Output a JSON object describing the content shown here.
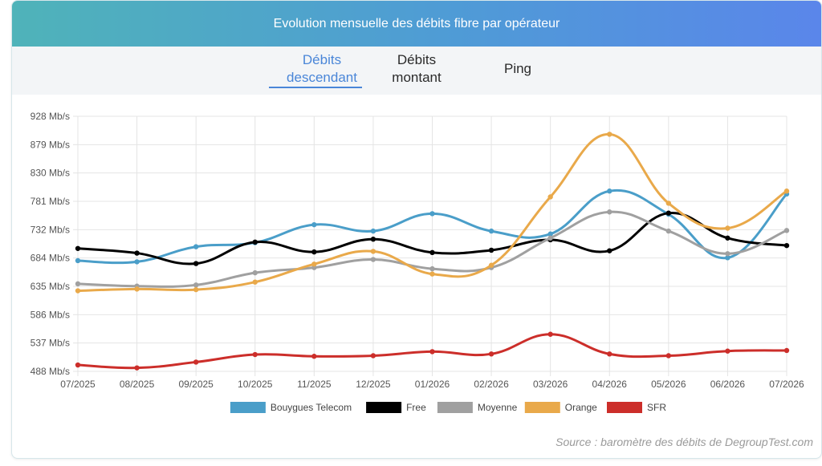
{
  "header": {
    "title": "Evolution mensuelle des débits fibre par opérateur"
  },
  "tabs": [
    {
      "line1": "Débits",
      "line2": "descendant",
      "active": true
    },
    {
      "line1": "Débits",
      "line2": "montant",
      "active": false
    },
    {
      "line1": "Ping",
      "line2": "",
      "active": false
    }
  ],
  "source": "Source : baromètre des débits de DegroupTest.com",
  "colors": {
    "Bouygues Telecom": "#4a9ec9",
    "Free": "#000000",
    "Moyenne": "#a0a0a0",
    "Orange": "#e9a94a",
    "SFR": "#cc2e2a"
  },
  "chart_data": {
    "type": "line",
    "title": "",
    "xlabel": "",
    "ylabel": "",
    "categories": [
      "07/2025",
      "08/2025",
      "09/2025",
      "10/2025",
      "11/2025",
      "12/2025",
      "01/2026",
      "02/2026",
      "03/2026",
      "04/2026",
      "05/2026",
      "06/2026",
      "07/2026"
    ],
    "y_ticks": [
      "928 Mb/s",
      "879 Mb/s",
      "830 Mb/s",
      "781 Mb/s",
      "732 Mb/s",
      "684 Mb/s",
      "635 Mb/s",
      "586 Mb/s",
      "537 Mb/s",
      "488 Mb/s"
    ],
    "ylim": [
      488,
      928
    ],
    "grid": true,
    "legend_position": "bottom",
    "series": [
      {
        "name": "Bouygues Telecom",
        "values": [
          679,
          677,
          703,
          710,
          741,
          730,
          760,
          730,
          725,
          799,
          759,
          684,
          794
        ]
      },
      {
        "name": "Free",
        "values": [
          700,
          692,
          674,
          711,
          694,
          716,
          693,
          697,
          715,
          696,
          761,
          718,
          705
        ]
      },
      {
        "name": "Moyenne",
        "values": [
          639,
          635,
          637,
          658,
          667,
          681,
          665,
          667,
          718,
          763,
          730,
          691,
          731
        ]
      },
      {
        "name": "Orange",
        "values": [
          627,
          630,
          629,
          642,
          673,
          695,
          656,
          671,
          789,
          897,
          778,
          735,
          799
        ]
      },
      {
        "name": "SFR",
        "values": [
          499,
          494,
          504,
          517,
          514,
          515,
          522,
          518,
          552,
          518,
          515,
          523,
          524
        ]
      }
    ]
  }
}
